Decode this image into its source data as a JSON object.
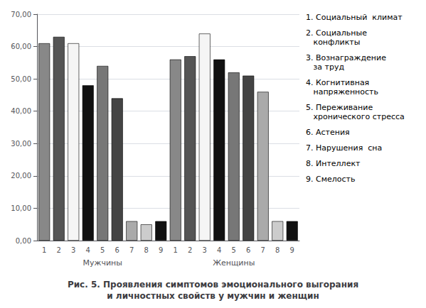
{
  "chart_data": {
    "type": "bar",
    "title": "Рис. 5. Проявления симптомов эмоционального выгорания\nи личностных свойств у мужчин и женщин",
    "categories": [
      "1",
      "2",
      "3",
      "4",
      "5",
      "6",
      "7",
      "8",
      "9",
      "1",
      "2",
      "3",
      "4",
      "5",
      "6",
      "7",
      "8",
      "9"
    ],
    "groups": [
      "Мужчины",
      "Женщины"
    ],
    "values": [
      61,
      63,
      61,
      48,
      54,
      44,
      6,
      5,
      6,
      56,
      57,
      64,
      56,
      52,
      51,
      46,
      6,
      6
    ],
    "colors": [
      "#888888",
      "#555555",
      "#f5f5f5",
      "#111111",
      "#777777",
      "#444444",
      "#aaaaaa",
      "#cccccc",
      "#111111",
      "#888888",
      "#555555",
      "#f5f5f5",
      "#111111",
      "#777777",
      "#444444",
      "#aaaaaa",
      "#cccccc",
      "#111111"
    ],
    "annotations": [
      "1. Социальный  климат",
      "2. Социальные\n   конфликты",
      "3. Вознаграждение\n   за труд",
      "4. Когнитивная\n   напряженность",
      "5. Переживание\n   хронического стресса",
      "6. Астения",
      "7. Нарушения  сна",
      "8. Интеллект",
      "9. Смелость"
    ],
    "ylim": [
      0,
      70
    ],
    "yticks": [
      {
        "value": 0,
        "label": "0,00"
      },
      {
        "value": 10,
        "label": "10,00"
      },
      {
        "value": 20,
        "label": "20,00"
      },
      {
        "value": 30,
        "label": "30,00"
      },
      {
        "value": 40,
        "label": "40,00"
      },
      {
        "value": 50,
        "label": "50,00"
      },
      {
        "value": 60,
        "label": "60,00"
      },
      {
        "value": 70,
        "label": "70,00"
      }
    ],
    "grid": true
  }
}
